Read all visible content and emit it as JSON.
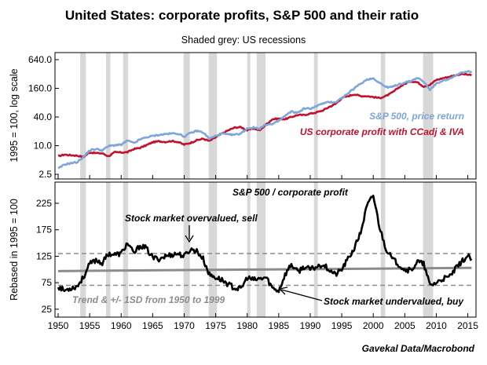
{
  "title": "United States: corporate profits, S&P 500 and their ratio",
  "subtitle": "Shaded grey: US recessions",
  "source": "Gavekal Data/Macrobond",
  "colors": {
    "sp500": "#7ea6d8",
    "profit": "#c0122e",
    "ratio": "#000000",
    "trend": "#8c8c8c",
    "recession": "#d8d8d8"
  },
  "chart_data": [
    {
      "type": "line",
      "panel": "top",
      "ylabel": "1995 = 100, log scale",
      "log_scale": true,
      "xlim": [
        1949.5,
        2016.3
      ],
      "ylim": [
        2.0,
        900
      ],
      "y_ticks": [
        2.5,
        10.0,
        40.0,
        160.0,
        640.0
      ],
      "y_tick_labels": [
        "2.5",
        "10.0",
        "40.0",
        "160.0",
        "640.0"
      ],
      "recessions": [
        [
          1953.5,
          1954.4
        ],
        [
          1957.6,
          1958.3
        ],
        [
          1960.3,
          1961.1
        ],
        [
          1969.9,
          1970.9
        ],
        [
          1973.9,
          1975.2
        ],
        [
          1980.0,
          1980.5
        ],
        [
          1981.5,
          1982.9
        ],
        [
          1990.6,
          1991.2
        ],
        [
          2001.2,
          2001.9
        ],
        [
          2007.9,
          2009.5
        ]
      ],
      "series": [
        {
          "name": "S&P 500, price return",
          "points": [
            [
              1950,
              3.3
            ],
            [
              1951,
              4.0
            ],
            [
              1952,
              4.3
            ],
            [
              1953,
              4.5
            ],
            [
              1954,
              5.8
            ],
            [
              1955,
              8.0
            ],
            [
              1956,
              8.5
            ],
            [
              1957,
              8.0
            ],
            [
              1958,
              9.8
            ],
            [
              1959,
              10.3
            ],
            [
              1960,
              10.4
            ],
            [
              1961,
              12.8
            ],
            [
              1962,
              11.3
            ],
            [
              1963,
              13.5
            ],
            [
              1964,
              15.0
            ],
            [
              1965,
              16.0
            ],
            [
              1966,
              16.8
            ],
            [
              1967,
              17.5
            ],
            [
              1968,
              18.0
            ],
            [
              1969,
              18.0
            ],
            [
              1970,
              15.5
            ],
            [
              1971,
              18.5
            ],
            [
              1972,
              20.5
            ],
            [
              1973,
              19.0
            ],
            [
              1974,
              14.0
            ],
            [
              1975,
              16.0
            ],
            [
              1976,
              18.0
            ],
            [
              1977,
              17.0
            ],
            [
              1978,
              17.0
            ],
            [
              1979,
              18.0
            ],
            [
              1980,
              23.0
            ],
            [
              1981,
              24.0
            ],
            [
              1982,
              23.0
            ],
            [
              1983,
              28.0
            ],
            [
              1984,
              28.0
            ],
            [
              1985,
              33.0
            ],
            [
              1986,
              42.0
            ],
            [
              1987,
              52.0
            ],
            [
              1988,
              49.0
            ],
            [
              1989,
              60.0
            ],
            [
              1990,
              60.0
            ],
            [
              1991,
              68.0
            ],
            [
              1992,
              77.0
            ],
            [
              1993,
              82.0
            ],
            [
              1994,
              82.0
            ],
            [
              1995,
              100.0
            ],
            [
              1996,
              125.0
            ],
            [
              1997,
              160.0
            ],
            [
              1998,
              200.0
            ],
            [
              1999,
              245.0
            ],
            [
              2000,
              260.0
            ],
            [
              2001,
              210.0
            ],
            [
              2002,
              170.0
            ],
            [
              2003,
              170.0
            ],
            [
              2004,
              195.0
            ],
            [
              2005,
              210.0
            ],
            [
              2006,
              230.0
            ],
            [
              2007,
              265.0
            ],
            [
              2008,
              220.0
            ],
            [
              2009,
              150.0
            ],
            [
              2010,
              200.0
            ],
            [
              2011,
              235.0
            ],
            [
              2012,
              245.0
            ],
            [
              2013,
              290.0
            ],
            [
              2014,
              340.0
            ],
            [
              2015,
              360.0
            ],
            [
              2015.6,
              340.0
            ]
          ]
        },
        {
          "name": "US corporate profit with CCadj & IVA",
          "points": [
            [
              1950,
              6.0
            ],
            [
              1951,
              6.5
            ],
            [
              1952,
              6.3
            ],
            [
              1953,
              6.2
            ],
            [
              1954,
              5.8
            ],
            [
              1955,
              7.2
            ],
            [
              1956,
              7.0
            ],
            [
              1957,
              6.9
            ],
            [
              1958,
              6.0
            ],
            [
              1959,
              7.3
            ],
            [
              1960,
              7.2
            ],
            [
              1961,
              7.3
            ],
            [
              1962,
              8.5
            ],
            [
              1963,
              9.0
            ],
            [
              1964,
              10.2
            ],
            [
              1965,
              11.8
            ],
            [
              1966,
              12.4
            ],
            [
              1967,
              12.0
            ],
            [
              1968,
              12.5
            ],
            [
              1969,
              12.0
            ],
            [
              1970,
              10.5
            ],
            [
              1971,
              11.5
            ],
            [
              1972,
              13.0
            ],
            [
              1973,
              14.0
            ],
            [
              1974,
              12.5
            ],
            [
              1975,
              15.0
            ],
            [
              1976,
              18.0
            ],
            [
              1977,
              21.0
            ],
            [
              1978,
              24.0
            ],
            [
              1979,
              24.5
            ],
            [
              1980,
              21.0
            ],
            [
              1981,
              23.0
            ],
            [
              1982,
              21.0
            ],
            [
              1983,
              28.0
            ],
            [
              1984,
              36.0
            ],
            [
              1985,
              37.0
            ],
            [
              1986,
              36.0
            ],
            [
              1987,
              40.0
            ],
            [
              1988,
              44.0
            ],
            [
              1989,
              44.0
            ],
            [
              1990,
              47.0
            ],
            [
              1991,
              50.0
            ],
            [
              1992,
              55.0
            ],
            [
              1993,
              65.0
            ],
            [
              1994,
              75.0
            ],
            [
              1995,
              100.0
            ],
            [
              1996,
              110.0
            ],
            [
              1997,
              120.0
            ],
            [
              1998,
              110.0
            ],
            [
              1999,
              110.0
            ],
            [
              2000,
              105.0
            ],
            [
              2001,
              100.0
            ],
            [
              2002,
              110.0
            ],
            [
              2003,
              130.0
            ],
            [
              2004,
              165.0
            ],
            [
              2005,
              200.0
            ],
            [
              2006,
              225.0
            ],
            [
              2007,
              215.0
            ],
            [
              2008,
              175.0
            ],
            [
              2009,
              190.0
            ],
            [
              2010,
              240.0
            ],
            [
              2011,
              260.0
            ],
            [
              2012,
              280.0
            ],
            [
              2013,
              300.0
            ],
            [
              2014,
              320.0
            ],
            [
              2015,
              310.0
            ],
            [
              2015.6,
              300.0
            ]
          ]
        }
      ]
    },
    {
      "type": "line",
      "panel": "bottom",
      "title": "S&P 500 / corporate profit",
      "ylabel": "Rebased in 1995 = 100",
      "xlim": [
        1949.5,
        2016.3
      ],
      "ylim": [
        10,
        265
      ],
      "y_ticks": [
        25,
        75,
        125,
        175,
        225
      ],
      "x_ticks": [
        1950,
        1955,
        1960,
        1965,
        1970,
        1975,
        1980,
        1985,
        1990,
        1995,
        2000,
        2005,
        2010,
        2015
      ],
      "recessions": [
        [
          1953.5,
          1954.4
        ],
        [
          1957.6,
          1958.3
        ],
        [
          1960.3,
          1961.1
        ],
        [
          1969.9,
          1970.9
        ],
        [
          1973.9,
          1975.2
        ],
        [
          1980.0,
          1980.5
        ],
        [
          1981.5,
          1982.9
        ],
        [
          1990.6,
          1991.2
        ],
        [
          2001.2,
          2001.9
        ],
        [
          2007.9,
          2009.5
        ]
      ],
      "trend": {
        "label": "Trend & +/- 1SD from 1950 to 1999",
        "points": [
          [
            1950,
            97
          ],
          [
            2015.6,
            103
          ]
        ],
        "upper": 130,
        "lower": 70
      },
      "series": [
        {
          "points": [
            [
              1950,
              68
            ],
            [
              1951,
              60
            ],
            [
              1952,
              65
            ],
            [
              1953,
              68
            ],
            [
              1954,
              85
            ],
            [
              1955,
              110
            ],
            [
              1956,
              118
            ],
            [
              1957,
              112
            ],
            [
              1958,
              130
            ],
            [
              1959,
              128
            ],
            [
              1960,
              130
            ],
            [
              1961,
              150
            ],
            [
              1962,
              130
            ],
            [
              1963,
              145
            ],
            [
              1964,
              140
            ],
            [
              1965,
              122
            ],
            [
              1966,
              120
            ],
            [
              1967,
              125
            ],
            [
              1968,
              128
            ],
            [
              1969,
              130
            ],
            [
              1970,
              125
            ],
            [
              1971,
              138
            ],
            [
              1972,
              135
            ],
            [
              1973,
              120
            ],
            [
              1974,
              90
            ],
            [
              1975,
              85
            ],
            [
              1976,
              80
            ],
            [
              1977,
              72
            ],
            [
              1978,
              65
            ],
            [
              1979,
              63
            ],
            [
              1980,
              85
            ],
            [
              1981,
              80
            ],
            [
              1982,
              82
            ],
            [
              1983,
              85
            ],
            [
              1984,
              65
            ],
            [
              1985,
              60
            ],
            [
              1986,
              90
            ],
            [
              1987,
              110
            ],
            [
              1988,
              95
            ],
            [
              1989,
              105
            ],
            [
              1990,
              100
            ],
            [
              1991,
              105
            ],
            [
              1992,
              110
            ],
            [
              1993,
              100
            ],
            [
              1994,
              90
            ],
            [
              1995,
              100
            ],
            [
              1996,
              120
            ],
            [
              1997,
              140
            ],
            [
              1998,
              170
            ],
            [
              1999,
              220
            ],
            [
              2000,
              240
            ],
            [
              2001,
              180
            ],
            [
              2002,
              140
            ],
            [
              2003,
              120
            ],
            [
              2004,
              110
            ],
            [
              2005,
              100
            ],
            [
              2006,
              98
            ],
            [
              2007,
              115
            ],
            [
              2008,
              110
            ],
            [
              2009,
              70
            ],
            [
              2010,
              75
            ],
            [
              2011,
              82
            ],
            [
              2012,
              85
            ],
            [
              2013,
              100
            ],
            [
              2014,
              115
            ],
            [
              2015,
              125
            ],
            [
              2015.6,
              120
            ]
          ]
        }
      ]
    }
  ],
  "annotations": {
    "overvalued": "Stock market overvalued, sell",
    "undervalued": "Stock market undervalued, buy"
  }
}
